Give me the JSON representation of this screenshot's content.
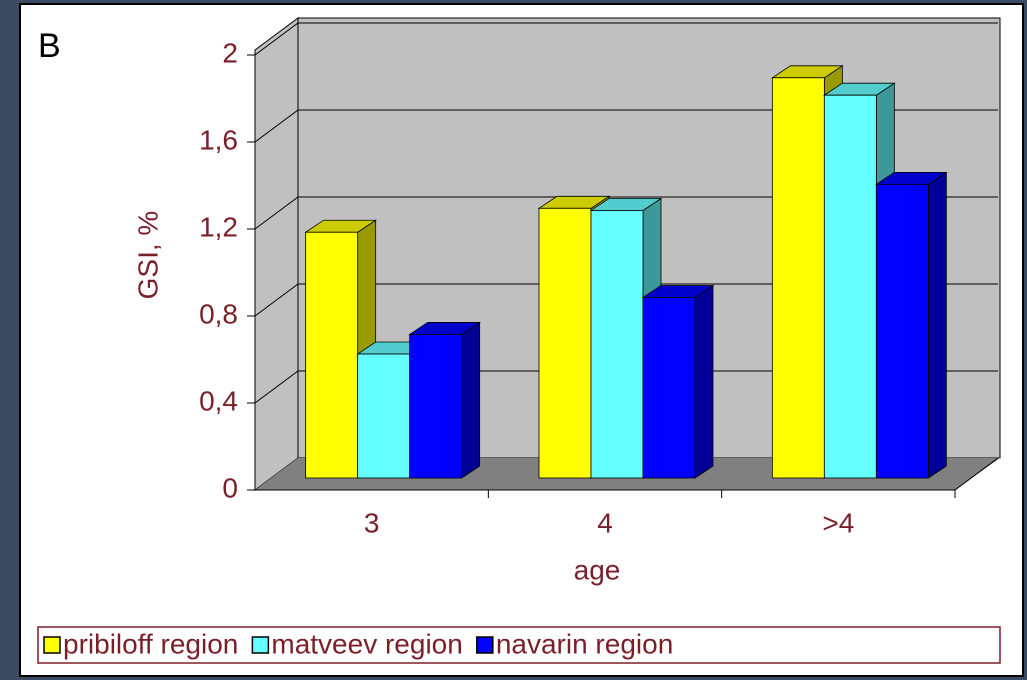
{
  "chart_data": {
    "type": "bar3d",
    "panel_label": "B",
    "y_label": "GSI, %",
    "x_label": "age",
    "categories": [
      "3",
      "4",
      ">4"
    ],
    "series": [
      {
        "name": "pribiloff region",
        "color": "#ffff00",
        "values": [
          1.13,
          1.24,
          1.84
        ]
      },
      {
        "name": "matveev region",
        "color": "#66ffff",
        "values": [
          0.57,
          1.23,
          1.76
        ]
      },
      {
        "name": "navarin region",
        "color": "#0000ff",
        "values": [
          0.66,
          0.83,
          1.35
        ]
      }
    ],
    "ylim": [
      0,
      2
    ],
    "yticks": [
      0,
      {
        "value": 0.4,
        "label": "0,4"
      },
      {
        "value": 0.8,
        "label": "0,8"
      },
      {
        "value": 1.2,
        "label": "1,2"
      },
      {
        "value": 1.6,
        "label": "1,6"
      },
      2
    ],
    "grid": true,
    "legend": "bottom"
  }
}
